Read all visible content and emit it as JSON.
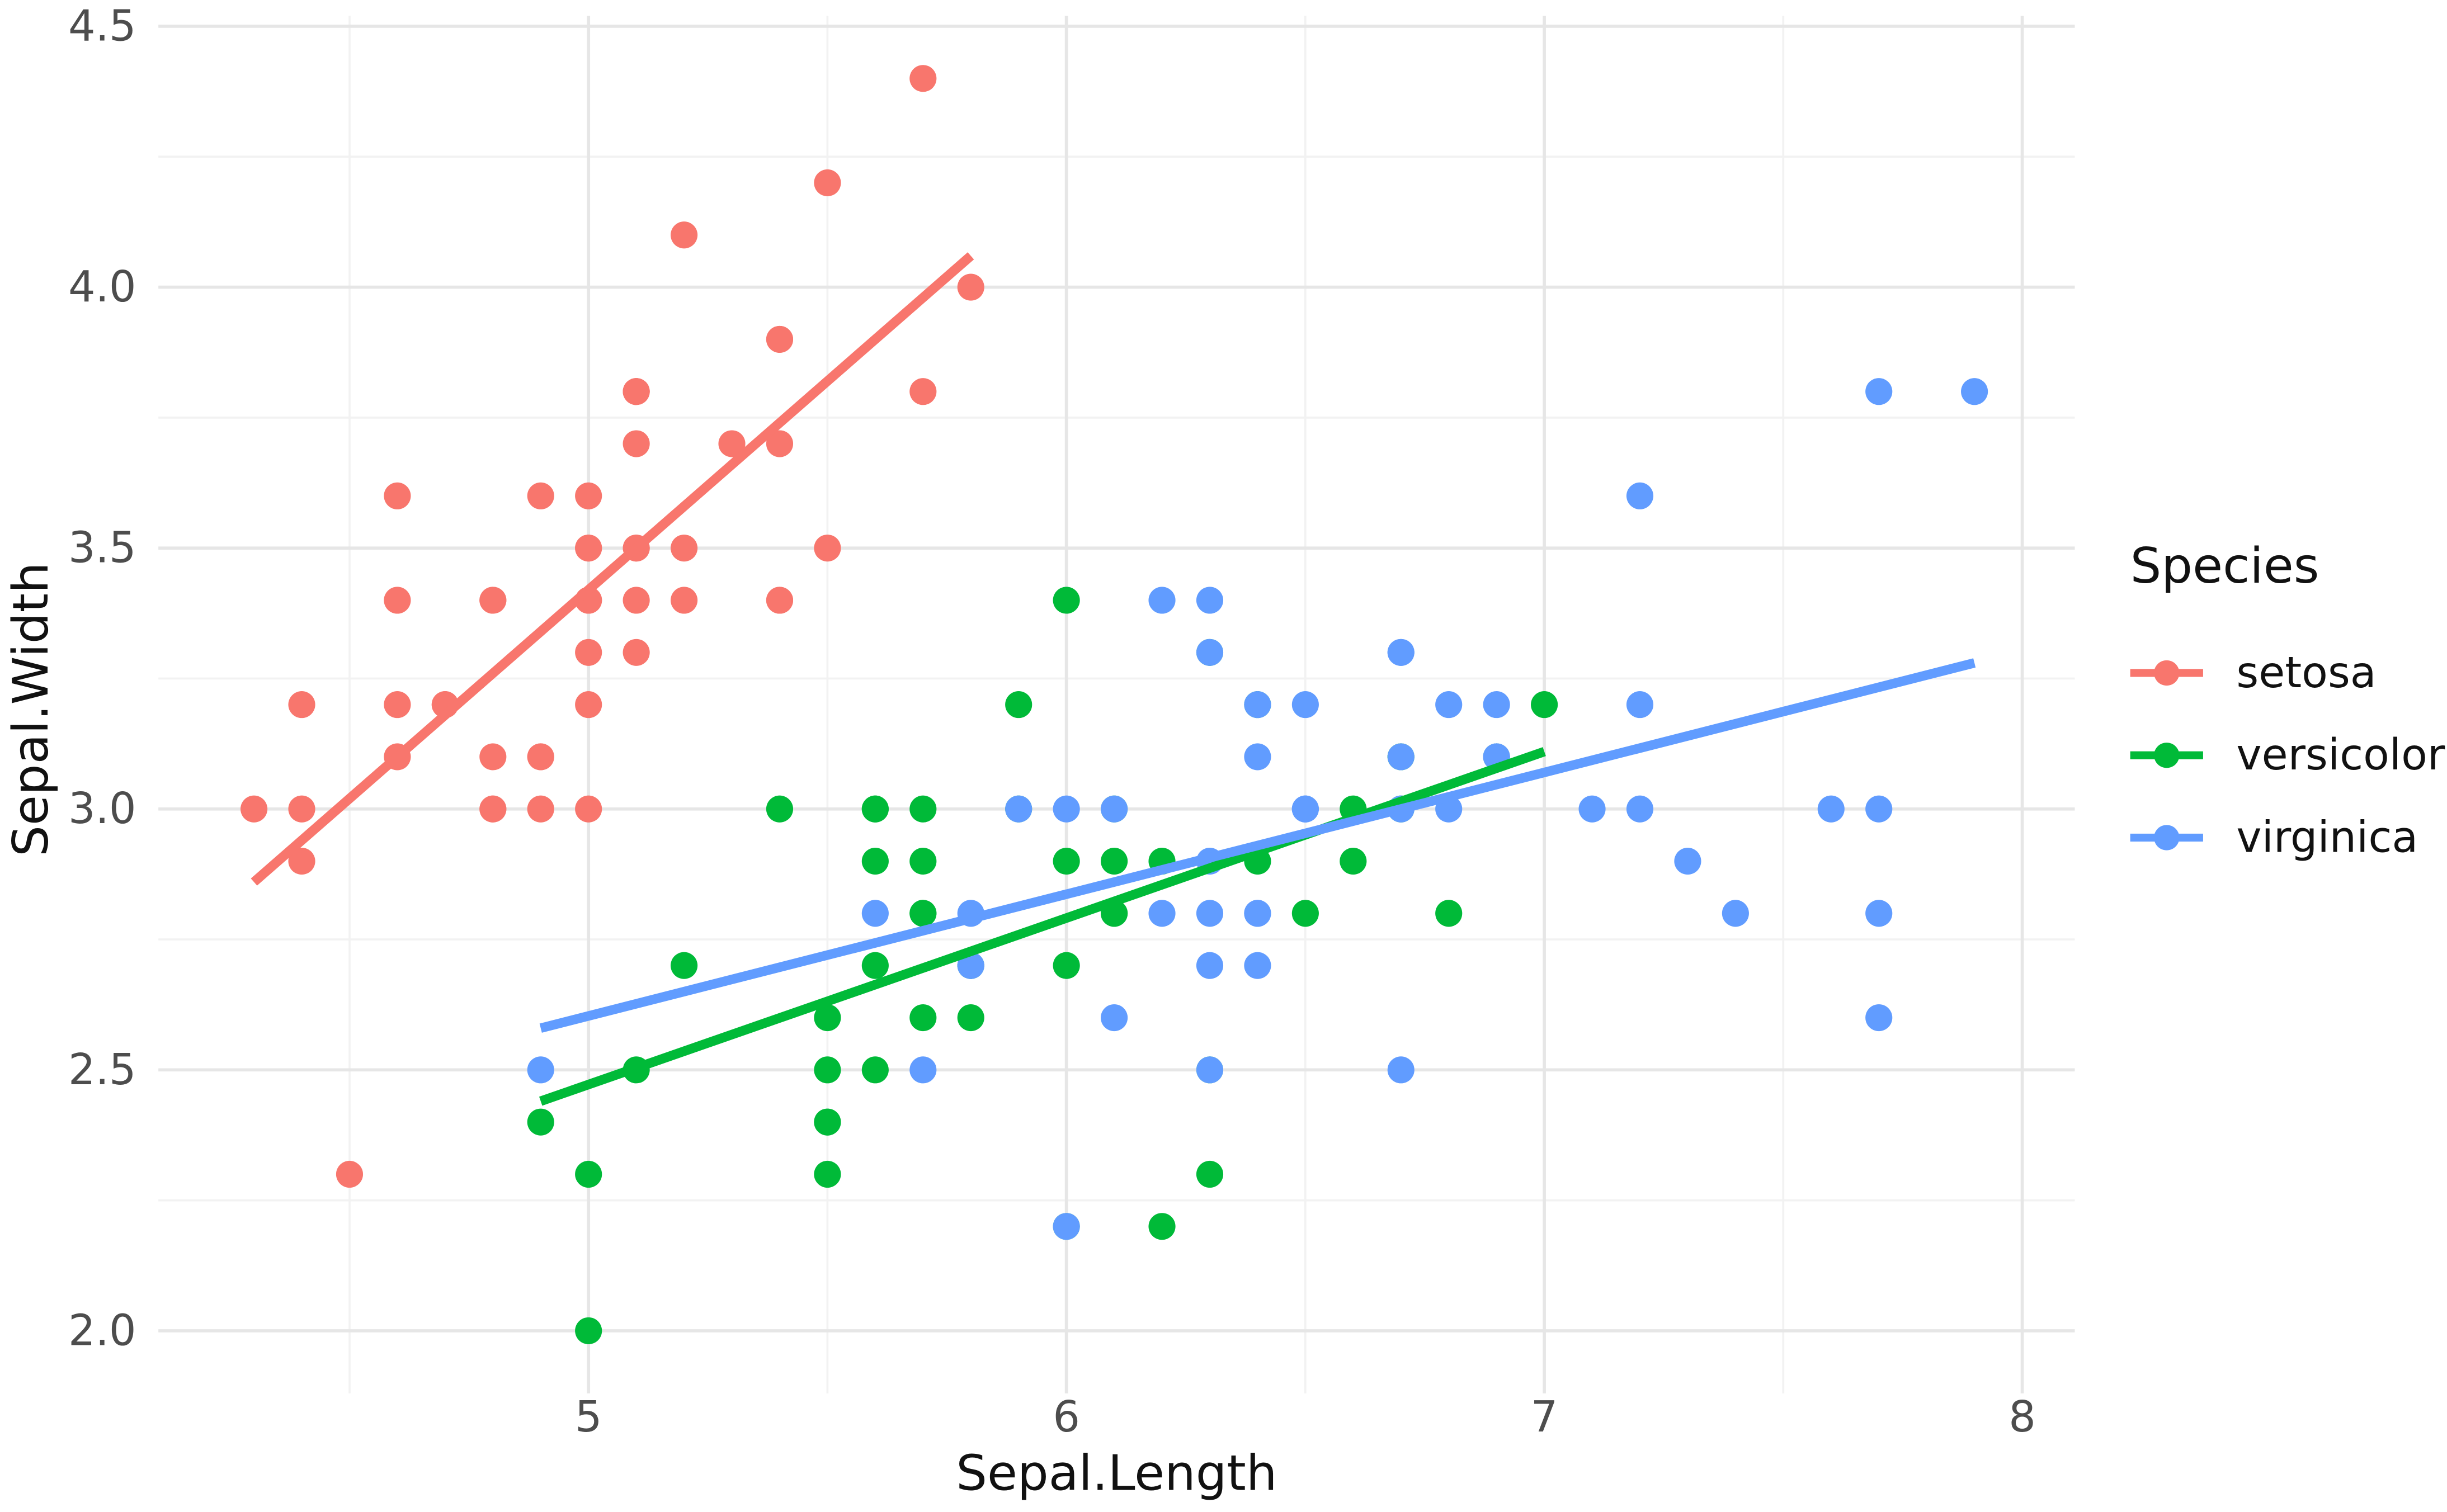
{
  "chart_data": {
    "type": "scatter",
    "title": "",
    "xlabel": "Sepal.Length",
    "ylabel": "Sepal.Width",
    "legend_title": "Species",
    "legend_position": "right",
    "grid": true,
    "panel_background": "#FFFFFF",
    "grid_major_color": "#E6E6E6",
    "grid_minor_color": "#F2F2F2",
    "tick_label_color": "#4D4D4D",
    "xlim": [
      4.1,
      8.11
    ],
    "ylim": [
      1.88,
      4.52
    ],
    "x_ticks": [
      5,
      6,
      7,
      8
    ],
    "x_tick_labels": [
      "5",
      "6",
      "7",
      "8"
    ],
    "y_ticks": [
      2.0,
      2.5,
      3.0,
      3.5,
      4.0,
      4.5
    ],
    "y_tick_labels": [
      "2.0",
      "2.5",
      "3.0",
      "3.5",
      "4.0",
      "4.5"
    ],
    "x_minor_ticks": [
      4.5,
      5.5,
      6.5,
      7.5
    ],
    "y_minor_ticks": [
      2.25,
      2.75,
      3.25,
      3.75,
      4.25
    ],
    "series": [
      {
        "name": "setosa",
        "color": "#F8766D",
        "trend": [
          [
            4.3,
            2.86
          ],
          [
            5.8,
            4.06
          ]
        ],
        "points": [
          [
            5.1,
            3.5
          ],
          [
            4.9,
            3.0
          ],
          [
            4.7,
            3.2
          ],
          [
            4.6,
            3.1
          ],
          [
            5.0,
            3.6
          ],
          [
            5.4,
            3.9
          ],
          [
            4.6,
            3.4
          ],
          [
            5.0,
            3.4
          ],
          [
            4.4,
            2.9
          ],
          [
            4.9,
            3.1
          ],
          [
            5.4,
            3.7
          ],
          [
            4.8,
            3.4
          ],
          [
            4.8,
            3.0
          ],
          [
            4.3,
            3.0
          ],
          [
            5.8,
            4.0
          ],
          [
            5.7,
            4.4
          ],
          [
            5.4,
            3.9
          ],
          [
            5.1,
            3.5
          ],
          [
            5.7,
            3.8
          ],
          [
            5.1,
            3.8
          ],
          [
            5.4,
            3.4
          ],
          [
            5.1,
            3.7
          ],
          [
            4.6,
            3.6
          ],
          [
            5.1,
            3.3
          ],
          [
            4.8,
            3.4
          ],
          [
            5.0,
            3.0
          ],
          [
            5.0,
            3.4
          ],
          [
            5.2,
            3.5
          ],
          [
            5.2,
            3.4
          ],
          [
            4.7,
            3.2
          ],
          [
            4.8,
            3.1
          ],
          [
            5.4,
            3.4
          ],
          [
            5.2,
            4.1
          ],
          [
            5.5,
            4.2
          ],
          [
            4.9,
            3.1
          ],
          [
            5.0,
            3.2
          ],
          [
            5.5,
            3.5
          ],
          [
            4.9,
            3.6
          ],
          [
            4.4,
            3.0
          ],
          [
            5.1,
            3.4
          ],
          [
            5.0,
            3.5
          ],
          [
            4.5,
            2.3
          ],
          [
            4.4,
            3.2
          ],
          [
            5.0,
            3.5
          ],
          [
            5.1,
            3.8
          ],
          [
            4.8,
            3.0
          ],
          [
            5.1,
            3.8
          ],
          [
            4.6,
            3.2
          ],
          [
            5.3,
            3.7
          ],
          [
            5.0,
            3.3
          ]
        ]
      },
      {
        "name": "versicolor",
        "color": "#00BA38",
        "trend": [
          [
            4.9,
            2.44
          ],
          [
            7.0,
            3.11
          ]
        ],
        "points": [
          [
            7.0,
            3.2
          ],
          [
            6.4,
            3.2
          ],
          [
            6.9,
            3.1
          ],
          [
            5.5,
            2.3
          ],
          [
            6.5,
            2.8
          ],
          [
            5.7,
            2.8
          ],
          [
            6.3,
            3.3
          ],
          [
            4.9,
            2.4
          ],
          [
            6.6,
            2.9
          ],
          [
            5.2,
            2.7
          ],
          [
            5.0,
            2.0
          ],
          [
            5.9,
            3.0
          ],
          [
            6.0,
            2.2
          ],
          [
            6.1,
            2.9
          ],
          [
            5.6,
            2.9
          ],
          [
            6.7,
            3.1
          ],
          [
            5.6,
            3.0
          ],
          [
            5.8,
            2.7
          ],
          [
            6.2,
            2.2
          ],
          [
            5.6,
            2.5
          ],
          [
            5.9,
            3.2
          ],
          [
            6.1,
            2.8
          ],
          [
            6.3,
            2.5
          ],
          [
            6.1,
            2.8
          ],
          [
            6.4,
            2.9
          ],
          [
            6.6,
            3.0
          ],
          [
            6.8,
            2.8
          ],
          [
            6.7,
            3.0
          ],
          [
            6.0,
            2.9
          ],
          [
            5.7,
            2.6
          ],
          [
            5.5,
            2.4
          ],
          [
            5.5,
            2.4
          ],
          [
            5.8,
            2.7
          ],
          [
            6.0,
            2.7
          ],
          [
            5.4,
            3.0
          ],
          [
            6.0,
            3.4
          ],
          [
            6.7,
            3.1
          ],
          [
            6.3,
            2.3
          ],
          [
            5.6,
            3.0
          ],
          [
            5.5,
            2.5
          ],
          [
            5.5,
            2.6
          ],
          [
            6.1,
            3.0
          ],
          [
            5.8,
            2.6
          ],
          [
            5.0,
            2.3
          ],
          [
            5.6,
            2.7
          ],
          [
            5.7,
            3.0
          ],
          [
            5.7,
            2.9
          ],
          [
            6.2,
            2.9
          ],
          [
            5.1,
            2.5
          ],
          [
            5.7,
            2.8
          ]
        ]
      },
      {
        "name": "virginica",
        "color": "#619CFF",
        "trend": [
          [
            4.9,
            2.58
          ],
          [
            7.9,
            3.28
          ]
        ],
        "points": [
          [
            6.3,
            3.3
          ],
          [
            5.8,
            2.7
          ],
          [
            7.1,
            3.0
          ],
          [
            6.3,
            2.9
          ],
          [
            6.5,
            3.0
          ],
          [
            7.6,
            3.0
          ],
          [
            4.9,
            2.5
          ],
          [
            7.3,
            2.9
          ],
          [
            6.7,
            2.5
          ],
          [
            7.2,
            3.6
          ],
          [
            6.5,
            3.2
          ],
          [
            6.4,
            2.7
          ],
          [
            6.8,
            3.0
          ],
          [
            5.7,
            2.5
          ],
          [
            5.8,
            2.8
          ],
          [
            6.4,
            3.2
          ],
          [
            6.5,
            3.0
          ],
          [
            7.7,
            3.8
          ],
          [
            7.7,
            2.6
          ],
          [
            6.0,
            2.2
          ],
          [
            6.9,
            3.2
          ],
          [
            5.6,
            2.8
          ],
          [
            7.7,
            2.8
          ],
          [
            6.3,
            2.7
          ],
          [
            6.7,
            3.3
          ],
          [
            7.2,
            3.2
          ],
          [
            6.2,
            2.8
          ],
          [
            6.1,
            3.0
          ],
          [
            6.4,
            2.8
          ],
          [
            7.2,
            3.0
          ],
          [
            7.4,
            2.8
          ],
          [
            7.9,
            3.8
          ],
          [
            6.4,
            2.8
          ],
          [
            6.3,
            2.8
          ],
          [
            6.1,
            2.6
          ],
          [
            7.7,
            3.0
          ],
          [
            6.3,
            3.4
          ],
          [
            6.4,
            3.1
          ],
          [
            6.0,
            3.0
          ],
          [
            6.9,
            3.1
          ],
          [
            6.7,
            3.1
          ],
          [
            6.9,
            3.1
          ],
          [
            5.8,
            2.7
          ],
          [
            6.8,
            3.2
          ],
          [
            6.7,
            3.3
          ],
          [
            6.7,
            3.0
          ],
          [
            6.3,
            2.5
          ],
          [
            6.5,
            3.0
          ],
          [
            6.2,
            3.4
          ],
          [
            5.9,
            3.0
          ]
        ]
      }
    ]
  }
}
